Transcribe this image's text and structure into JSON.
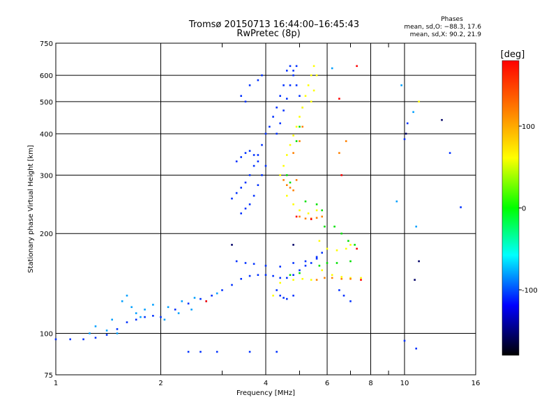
{
  "chart_data": {
    "type": "scatter",
    "title": "Tromsø 20150713 16:44:00–16:45:43",
    "subtitle": "RwPretec (8p)",
    "xlabel": "Frequency [MHz]",
    "ylabel": "Stationary phase Virtual Height [km]",
    "x_scale": "log",
    "y_scale": "log",
    "xlim": [
      1,
      16
    ],
    "ylim": [
      75,
      750
    ],
    "x_ticks": [
      1,
      2,
      4,
      6,
      8,
      10,
      16
    ],
    "x_ticks_minor": [
      3,
      5,
      7,
      9
    ],
    "y_ticks": [
      75,
      100,
      200,
      300,
      400,
      500,
      600,
      750
    ],
    "grid": true,
    "stats": {
      "header": "Phases",
      "line_o": "mean, sd,O: −88.3, 17.6",
      "line_x": "mean, sd,X:  90.2, 21.9"
    },
    "colorbar": {
      "label": "[deg]",
      "range": [
        -180,
        180
      ],
      "ticks": [
        100,
        0,
        -100
      ],
      "colors": [
        "#ff0000",
        "#ff8000",
        "#ffff00",
        "#00ff00",
        "#00ffff",
        "#0000ff",
        "#000000"
      ]
    },
    "series": [
      {
        "color": "#0030ff",
        "phase": -100,
        "points": [
          [
            1.0,
            96
          ],
          [
            1.1,
            96
          ],
          [
            1.2,
            96
          ],
          [
            1.3,
            97
          ],
          [
            1.4,
            99
          ],
          [
            1.5,
            103
          ],
          [
            1.6,
            108
          ],
          [
            1.7,
            110
          ],
          [
            1.8,
            112
          ],
          [
            1.9,
            113
          ],
          [
            2.0,
            112
          ],
          [
            2.2,
            118
          ],
          [
            2.4,
            123
          ],
          [
            2.6,
            127
          ],
          [
            2.8,
            130
          ],
          [
            3.0,
            135
          ],
          [
            3.2,
            140
          ],
          [
            3.4,
            146
          ],
          [
            3.6,
            149
          ],
          [
            3.8,
            150
          ],
          [
            4.0,
            150
          ],
          [
            4.2,
            149
          ],
          [
            4.4,
            147
          ],
          [
            4.6,
            147
          ],
          [
            4.8,
            150
          ],
          [
            5.0,
            155
          ],
          [
            5.2,
            160
          ],
          [
            5.4,
            163
          ],
          [
            5.6,
            168
          ],
          [
            5.8,
            175
          ],
          [
            3.3,
            165
          ],
          [
            3.5,
            163
          ],
          [
            3.7,
            162
          ],
          [
            4.0,
            160
          ],
          [
            4.4,
            159
          ],
          [
            4.8,
            163
          ],
          [
            5.2,
            165
          ],
          [
            5.6,
            170
          ],
          [
            3.2,
            255
          ],
          [
            3.3,
            265
          ],
          [
            3.4,
            275
          ],
          [
            3.5,
            285
          ],
          [
            3.6,
            300
          ],
          [
            3.7,
            320
          ],
          [
            3.8,
            345
          ],
          [
            3.9,
            370
          ],
          [
            4.0,
            400
          ],
          [
            4.1,
            420
          ],
          [
            4.2,
            450
          ],
          [
            4.3,
            480
          ],
          [
            4.4,
            520
          ],
          [
            4.5,
            560
          ],
          [
            4.6,
            620
          ],
          [
            4.7,
            640
          ],
          [
            4.8,
            600
          ],
          [
            4.9,
            560
          ],
          [
            5.0,
            520
          ],
          [
            5.1,
            480
          ],
          [
            4.3,
            400
          ],
          [
            4.4,
            430
          ],
          [
            4.5,
            470
          ],
          [
            4.6,
            510
          ],
          [
            4.7,
            560
          ],
          [
            4.8,
            620
          ],
          [
            4.9,
            640
          ],
          [
            3.4,
            230
          ],
          [
            3.5,
            238
          ],
          [
            3.6,
            245
          ],
          [
            3.7,
            260
          ],
          [
            3.8,
            280
          ],
          [
            3.9,
            300
          ],
          [
            4.0,
            320
          ],
          [
            3.3,
            330
          ],
          [
            3.4,
            340
          ],
          [
            3.5,
            350
          ],
          [
            3.6,
            355
          ],
          [
            3.7,
            345
          ],
          [
            3.8,
            330
          ],
          [
            3.5,
            500
          ],
          [
            3.4,
            520
          ],
          [
            3.6,
            560
          ],
          [
            3.8,
            580
          ],
          [
            3.9,
            600
          ],
          [
            4.3,
            135
          ],
          [
            4.4,
            130
          ],
          [
            4.5,
            128
          ],
          [
            4.6,
            127
          ],
          [
            4.8,
            130
          ],
          [
            6.5,
            135
          ],
          [
            6.7,
            130
          ],
          [
            7.0,
            125
          ],
          [
            10.0,
            95
          ],
          [
            10.8,
            90
          ],
          [
            2.4,
            88
          ],
          [
            2.6,
            88
          ],
          [
            2.9,
            88
          ],
          [
            3.6,
            88
          ],
          [
            4.3,
            88
          ],
          [
            10,
            385
          ],
          [
            10.2,
            430
          ],
          [
            13.5,
            350
          ],
          [
            14.5,
            240
          ]
        ]
      },
      {
        "color": "#00a0ff",
        "phase": -70,
        "points": [
          [
            1.55,
            125
          ],
          [
            1.6,
            130
          ],
          [
            1.65,
            120
          ],
          [
            1.7,
            115
          ],
          [
            1.8,
            118
          ],
          [
            1.9,
            122
          ],
          [
            2.1,
            120
          ],
          [
            2.3,
            125
          ],
          [
            2.5,
            128
          ],
          [
            1.4,
            102
          ],
          [
            1.5,
            100
          ],
          [
            1.45,
            110
          ],
          [
            1.75,
            112
          ],
          [
            2.05,
            110
          ],
          [
            2.25,
            115
          ],
          [
            2.45,
            118
          ],
          [
            1.3,
            105
          ],
          [
            1.25,
            100
          ],
          [
            2.7,
            125
          ],
          [
            2.9,
            132
          ],
          [
            6.2,
            630
          ],
          [
            10.6,
            465
          ],
          [
            9.8,
            560
          ],
          [
            10.8,
            210
          ],
          [
            9.5,
            250
          ]
        ]
      },
      {
        "color": "#ffff00",
        "phase": 100,
        "points": [
          [
            4.4,
            300
          ],
          [
            4.5,
            320
          ],
          [
            4.6,
            345
          ],
          [
            4.7,
            370
          ],
          [
            4.8,
            395
          ],
          [
            4.9,
            420
          ],
          [
            5.0,
            450
          ],
          [
            5.1,
            480
          ],
          [
            5.2,
            520
          ],
          [
            5.3,
            560
          ],
          [
            5.4,
            600
          ],
          [
            5.5,
            640
          ],
          [
            5.6,
            600
          ],
          [
            5.5,
            540
          ],
          [
            5.4,
            500
          ],
          [
            4.6,
            260
          ],
          [
            4.8,
            245
          ],
          [
            5.0,
            235
          ],
          [
            5.3,
            230
          ],
          [
            5.6,
            235
          ],
          [
            5.7,
            190
          ],
          [
            6.0,
            180
          ],
          [
            6.4,
            178
          ],
          [
            6.8,
            180
          ],
          [
            7.0,
            185
          ],
          [
            5.8,
            155
          ],
          [
            6.2,
            150
          ],
          [
            6.6,
            148
          ],
          [
            7.0,
            147
          ],
          [
            7.5,
            147
          ],
          [
            4.2,
            130
          ],
          [
            4.4,
            142
          ],
          [
            4.8,
            145
          ],
          [
            5.1,
            146
          ],
          [
            5.4,
            145
          ],
          [
            11.0,
            500
          ]
        ]
      },
      {
        "color": "#00e000",
        "phase": 30,
        "points": [
          [
            4.6,
            300
          ],
          [
            4.7,
            285
          ],
          [
            5.2,
            250
          ],
          [
            5.6,
            245
          ],
          [
            5.8,
            235
          ],
          [
            5.9,
            210
          ],
          [
            6.3,
            210
          ],
          [
            6.6,
            200
          ],
          [
            6.9,
            190
          ],
          [
            7.2,
            185
          ],
          [
            5.7,
            160
          ],
          [
            6.0,
            163
          ],
          [
            6.4,
            163
          ],
          [
            7.0,
            165
          ],
          [
            4.7,
            150
          ],
          [
            5.0,
            152
          ],
          [
            4.9,
            380
          ],
          [
            5.0,
            420
          ]
        ]
      },
      {
        "color": "#ff8000",
        "phase": 150,
        "points": [
          [
            4.5,
            290
          ],
          [
            4.6,
            280
          ],
          [
            4.7,
            275
          ],
          [
            4.8,
            270
          ],
          [
            4.9,
            290
          ],
          [
            5.0,
            225
          ],
          [
            5.2,
            222
          ],
          [
            5.4,
            222
          ],
          [
            5.6,
            223
          ],
          [
            5.8,
            225
          ],
          [
            5.6,
            145
          ],
          [
            5.9,
            147
          ],
          [
            6.2,
            147
          ],
          [
            6.6,
            146
          ],
          [
            7.0,
            146
          ],
          [
            4.8,
            350
          ],
          [
            5.0,
            380
          ],
          [
            5.1,
            420
          ],
          [
            6.8,
            380
          ],
          [
            6.5,
            350
          ]
        ]
      },
      {
        "color": "#ff0000",
        "phase": 175,
        "points": [
          [
            6.5,
            510
          ],
          [
            7.3,
            640
          ],
          [
            6.6,
            300
          ],
          [
            7.3,
            180
          ],
          [
            2.7,
            125
          ],
          [
            7.5,
            145
          ],
          [
            4.9,
            225
          ],
          [
            5.4,
            221
          ]
        ]
      },
      {
        "color": "#000066",
        "phase": -150,
        "points": [
          [
            12.8,
            440
          ],
          [
            10.1,
            400
          ],
          [
            11.0,
            165
          ],
          [
            10.7,
            145
          ],
          [
            3.2,
            185
          ],
          [
            4.8,
            185
          ]
        ]
      }
    ]
  }
}
